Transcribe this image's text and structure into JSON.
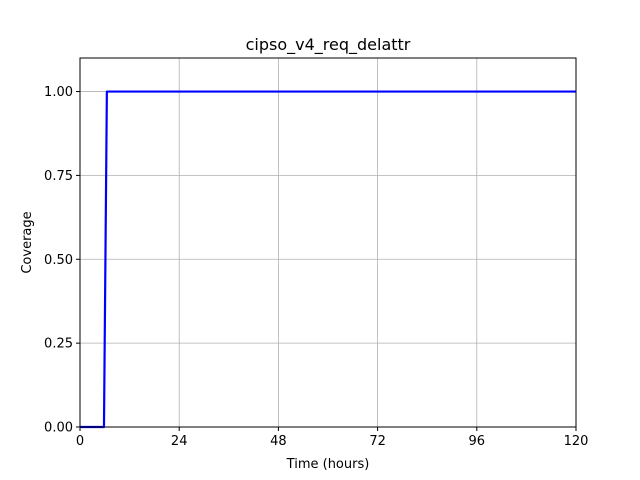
{
  "chart_data": {
    "type": "line",
    "title": "cipso_v4_req_delattr",
    "xlabel": "Time (hours)",
    "ylabel": "Coverage",
    "xlim": [
      0,
      120
    ],
    "ylim": [
      0,
      1.1
    ],
    "x_ticks": [
      0,
      24,
      48,
      72,
      96,
      120
    ],
    "x_tick_labels": [
      "0",
      "24",
      "48",
      "72",
      "96",
      "120"
    ],
    "y_ticks": [
      0,
      0.25,
      0.5,
      0.75,
      1.0
    ],
    "y_tick_labels": [
      "0.00",
      "0.25",
      "0.50",
      "0.75",
      "1.00"
    ],
    "grid": true,
    "legend": "none",
    "series": [
      {
        "color": "#0000ff",
        "x": [
          0,
          5.8,
          6.5,
          120
        ],
        "y": [
          0,
          0,
          1.0,
          1.0
        ]
      }
    ]
  }
}
